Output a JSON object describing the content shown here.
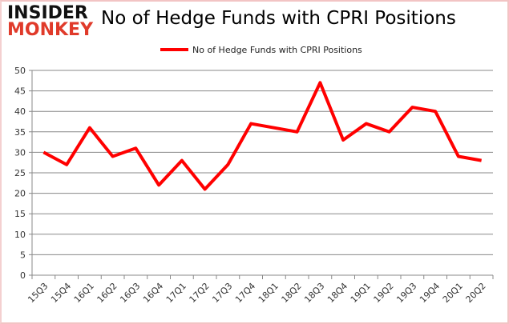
{
  "logo": {
    "line1": "INSIDER",
    "line2": "MONKEY"
  },
  "chart_data": {
    "type": "line",
    "title": "No of Hedge Funds with CPRI Positions",
    "xlabel": "",
    "ylabel": "",
    "categories": [
      "15Q3",
      "15Q4",
      "16Q1",
      "16Q2",
      "16Q3",
      "16Q4",
      "17Q1",
      "17Q2",
      "17Q3",
      "17Q4",
      "18Q1",
      "18Q2",
      "18Q3",
      "18Q4",
      "19Q1",
      "19Q2",
      "19Q3",
      "19Q4",
      "20Q1",
      "20Q2"
    ],
    "series": [
      {
        "name": "No of Hedge Funds with CPRI Positions",
        "color": "#ff0000",
        "values": [
          30,
          27,
          36,
          29,
          31,
          22,
          28,
          21,
          27,
          37,
          36,
          35,
          47,
          33,
          37,
          35,
          41,
          40,
          29,
          28
        ]
      }
    ],
    "ylim": [
      0,
      50
    ],
    "yticks": [
      0,
      5,
      10,
      15,
      20,
      25,
      30,
      35,
      40,
      45,
      50
    ],
    "grid": true,
    "legend": "top"
  }
}
